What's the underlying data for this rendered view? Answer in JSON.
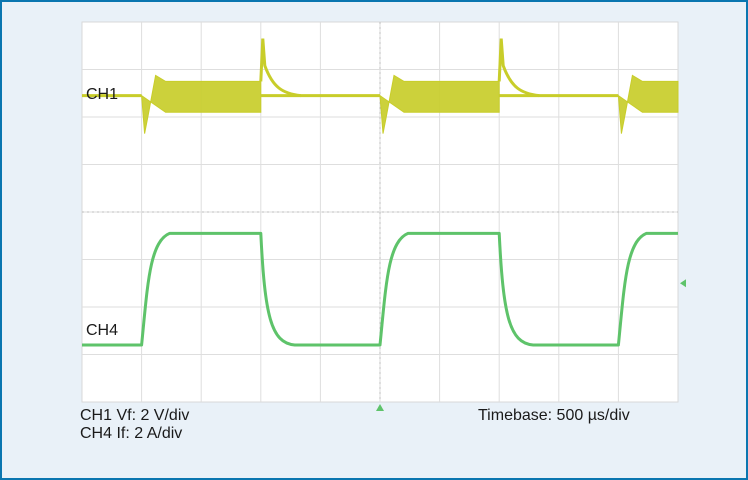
{
  "chart_data": {
    "type": "line",
    "title": "",
    "xlabel": "",
    "ylabel": "",
    "grid": true,
    "divisions": {
      "x": 10,
      "y": 8
    },
    "series": [
      {
        "name": "CH1",
        "color": "#c8cd2a"
      },
      {
        "name": "CH4",
        "color": "#5ec36a"
      }
    ],
    "scales": {
      "ch1": "CH1 Vf: 2 V/div",
      "ch4": "CH4 If: 2 A/div",
      "timebase": "Timebase: 500 µs/div"
    },
    "waveform": {
      "period_div": 4.0,
      "on_start_div": [
        1.0,
        5.0,
        9.0
      ],
      "on_end_div": [
        3.0,
        7.0
      ],
      "ch4_high_level_div": 0.45,
      "ch4_low_level_div": 2.8,
      "ch1_baseline_div": 1.55,
      "ch1_on_band_div": [
        1.25,
        1.9
      ],
      "ch1_spike_div": 0.35,
      "ch1_dip_div": 2.35
    }
  }
}
